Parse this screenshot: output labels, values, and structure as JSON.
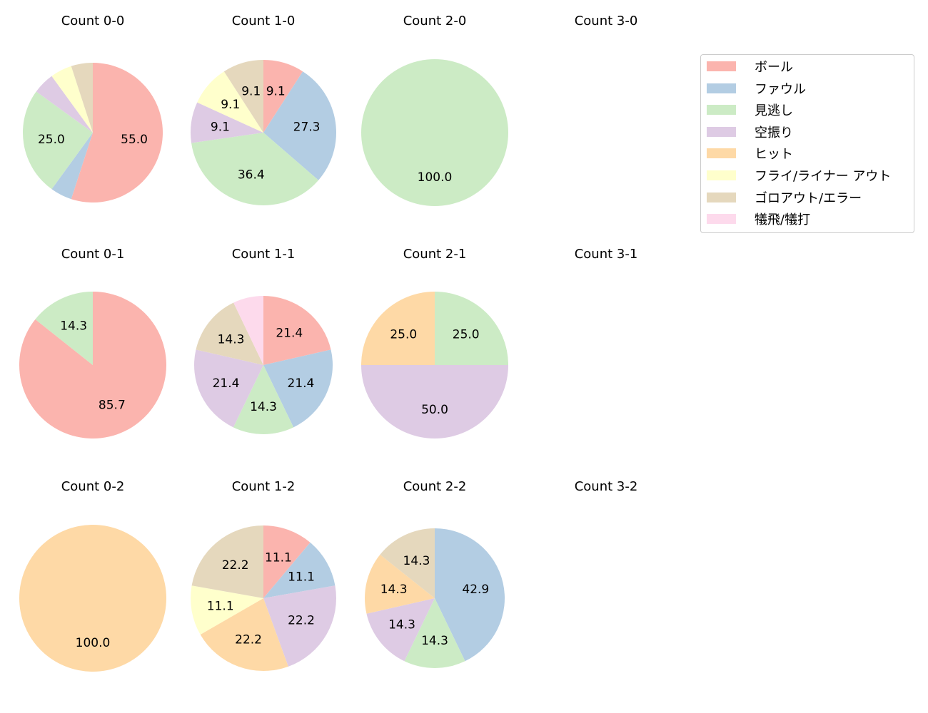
{
  "chart_data": {
    "type": "pie",
    "legend": {
      "placement": "upper-right",
      "entries": [
        "ボール",
        "ファウル",
        "見逃し",
        "空振り",
        "ヒット",
        "フライ/ライナー アウト",
        "ゴロアウト/エラー",
        "犠飛/犠打"
      ],
      "colors": [
        "#fbb4ae",
        "#b3cde3",
        "#ccebc5",
        "#decbe4",
        "#fed9a6",
        "#ffffcc",
        "#e5d8bd",
        "#fddaec"
      ]
    },
    "charts": [
      {
        "title": "Count 0-0",
        "values": [
          55.0,
          5.0,
          25.0,
          5.0,
          0,
          5.0,
          5.0,
          0
        ]
      },
      {
        "title": "Count 1-0",
        "values": [
          9.1,
          27.3,
          36.4,
          9.1,
          0,
          9.1,
          9.1,
          0
        ]
      },
      {
        "title": "Count 2-0",
        "values": [
          0,
          0,
          100.0,
          0,
          0,
          0,
          0,
          0
        ]
      },
      {
        "title": "Count 3-0",
        "values": []
      },
      {
        "title": "Count 0-1",
        "values": [
          85.7,
          0,
          14.3,
          0,
          0,
          0,
          0,
          0
        ]
      },
      {
        "title": "Count 1-1",
        "values": [
          21.4,
          21.4,
          14.3,
          21.4,
          0,
          0,
          14.3,
          7.1
        ]
      },
      {
        "title": "Count 2-1",
        "values": [
          0,
          0,
          25.0,
          50.0,
          25.0,
          0,
          0,
          0
        ]
      },
      {
        "title": "Count 3-1",
        "values": []
      },
      {
        "title": "Count 0-2",
        "values": [
          0,
          0,
          0,
          0,
          100.0,
          0,
          0,
          0
        ]
      },
      {
        "title": "Count 1-2",
        "values": [
          11.1,
          11.1,
          0,
          22.2,
          22.2,
          11.1,
          22.2,
          0
        ]
      },
      {
        "title": "Count 2-2",
        "values": [
          0,
          42.9,
          14.3,
          14.3,
          14.3,
          0,
          14.3,
          0
        ]
      },
      {
        "title": "Count 3-2",
        "values": []
      }
    ]
  }
}
